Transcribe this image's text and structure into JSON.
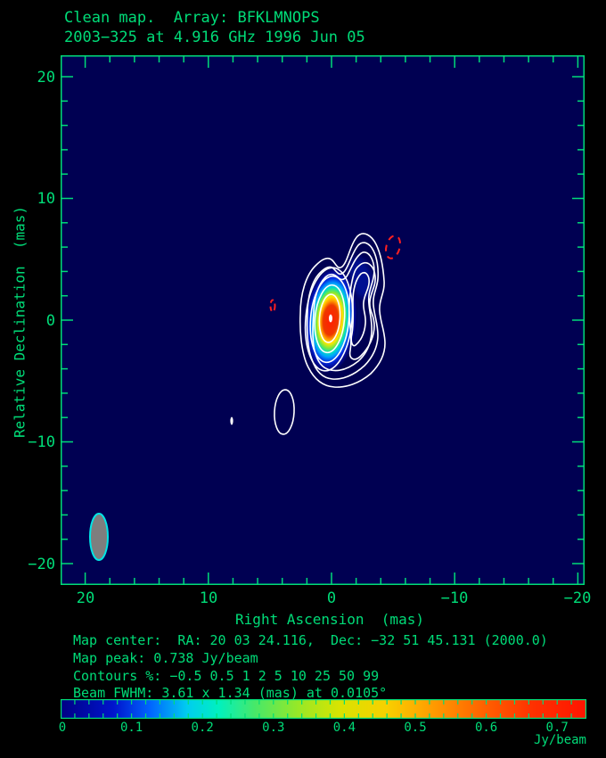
{
  "title": {
    "line1": "Clean map.  Array: BFKLMNOPS",
    "line2": "2003−325 at 4.916 GHz 1996 Jun 05"
  },
  "axes": {
    "x": {
      "label": "Right Ascension  (mas)",
      "ticks": [
        "20",
        "10",
        "0",
        "−10",
        "−20"
      ]
    },
    "y": {
      "label": "Relative Declination  (mas)",
      "ticks": [
        "20",
        "10",
        "0",
        "−10",
        "−20"
      ]
    }
  },
  "footer": {
    "map_center": "Map center:  RA: 20 03 24.116,  Dec: −32 51 45.131 (2000.0)",
    "map_peak": "Map peak: 0.738 Jy/beam",
    "contours": "Contours %: −0.5 0.5 1 2 5 10 25 50 99",
    "beam_fwhm": "Beam FWHM: 3.61 x 1.34 (mas) at 0.0105°"
  },
  "colorbar": {
    "ticks": [
      "0",
      "0.1",
      "0.2",
      "0.3",
      "0.4",
      "0.5",
      "0.6",
      "0.7"
    ],
    "tick_values": [
      0,
      0.1,
      0.2,
      0.3,
      0.4,
      0.5,
      0.6,
      0.7
    ],
    "minor_step": 0.02,
    "unit": "Jy/beam",
    "min": 0,
    "max": 0.738,
    "colormap": "jet"
  },
  "colors": {
    "frame_green": "#00dc78",
    "map_background": "#000052",
    "contour_positive": "#ffffff",
    "contour_negative": "#ff2020",
    "beam_fill": "#7e7e7e",
    "beam_edge": "#00e6e6",
    "page_background": "#000000"
  },
  "chart_data": {
    "type": "heatmap",
    "title": "Clean map.  Array: BFKLMNOPS",
    "subtitle": "2003−325 at 4.916 GHz 1996 Jun 05",
    "xlabel": "Right Ascension  (mas)",
    "ylabel": "Relative Declination  (mas)",
    "xlim": [
      22,
      -22
    ],
    "ylim": [
      -22,
      22
    ],
    "x_ticks": [
      20,
      10,
      0,
      -10,
      -20
    ],
    "y_ticks": [
      20,
      10,
      0,
      -10,
      -20
    ],
    "minor_tick_step_mas": 2,
    "grid": false,
    "legend_position": "none",
    "map_peak_jy_per_beam": 0.738,
    "colorbar_range_jy_per_beam": [
      0,
      0.738
    ],
    "contour_levels_percent": [
      -0.5,
      0.5,
      1,
      2,
      5,
      10,
      25,
      50,
      99
    ],
    "beam_fwhm_mas": [
      3.61,
      1.34
    ],
    "beam_position_angle_deg": 0.0105,
    "frequency_ghz": 4.916,
    "epoch": "1996 Jun 05",
    "source": "2003-325",
    "map_center": {
      "ra": "20 03 24.116",
      "dec": "−32 51 45.131",
      "equinox": "2000.0"
    },
    "features": [
      {
        "name": "core-gaussian-peak",
        "x_mas": 0.0,
        "y_mas": 0.0,
        "peak_jy_per_beam": 0.738
      },
      {
        "name": "jet-extension-contours",
        "x_mas": -2.5,
        "y_mas": 4.0
      },
      {
        "name": "isolated-positive-contour",
        "x_mas": 3.8,
        "y_mas": -7.5
      },
      {
        "name": "tiny-positive-contour",
        "x_mas": 8.1,
        "y_mas": -8.2
      },
      {
        "name": "negative-contour-dashed",
        "x_mas": -5.0,
        "y_mas": 5.9
      },
      {
        "name": "negative-contour-dashed-small",
        "x_mas": 4.8,
        "y_mas": 1.2
      },
      {
        "name": "restoring-beam-ellipse",
        "x_mas": 18.9,
        "y_mas": -17.8
      }
    ]
  }
}
